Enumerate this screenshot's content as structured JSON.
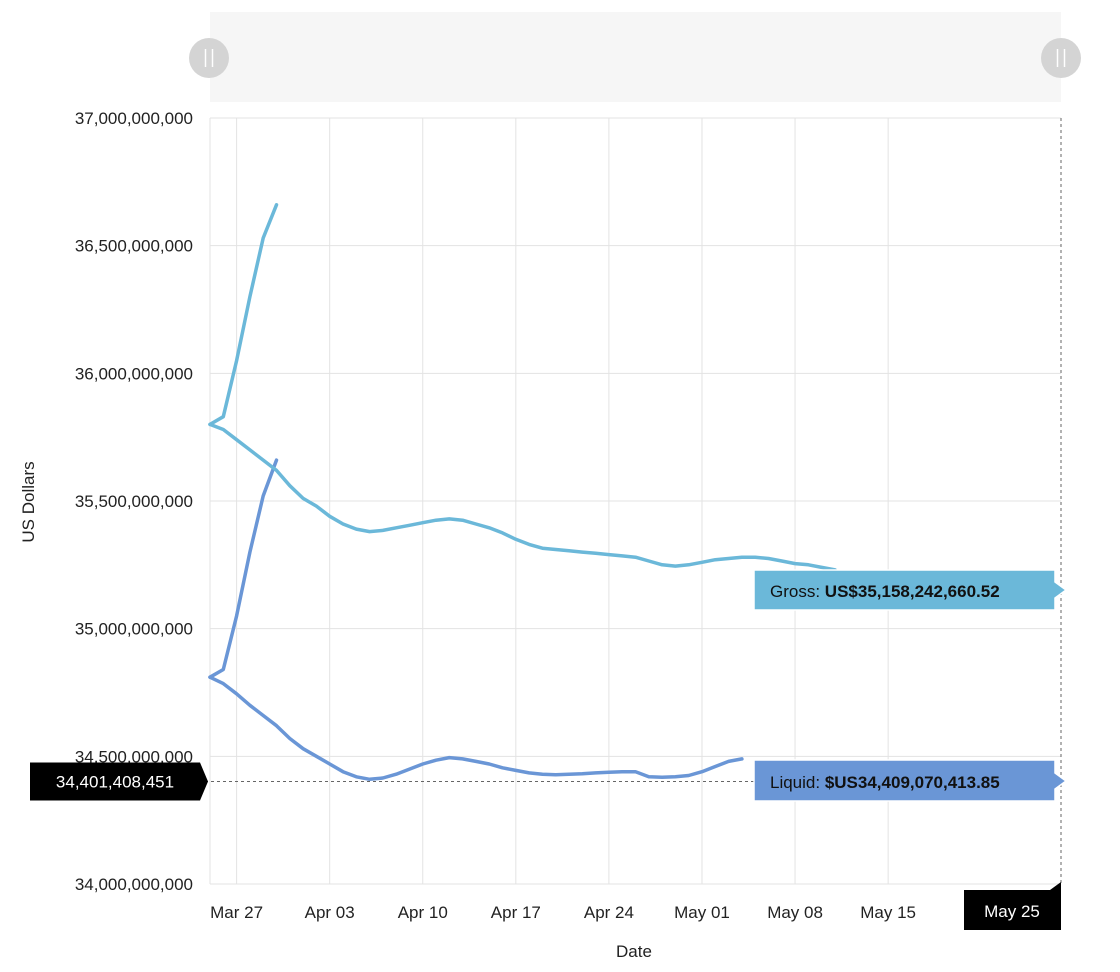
{
  "chart_data": {
    "type": "line",
    "xlabel": "Date",
    "ylabel": "US Dollars",
    "ylim": [
      34000000000,
      37000000000
    ],
    "yticks": [
      {
        "value": 34000000000,
        "label": "34,000,000,000"
      },
      {
        "value": 34500000000,
        "label": "34,500,000,000"
      },
      {
        "value": 35000000000,
        "label": "35,000,000,000"
      },
      {
        "value": 35500000000,
        "label": "35,500,000,000"
      },
      {
        "value": 36000000000,
        "label": "36,000,000,000"
      },
      {
        "value": 36500000000,
        "label": "36,500,000,000"
      },
      {
        "value": 37000000000,
        "label": "37,000,000,000"
      }
    ],
    "xlim": [
      "2020-03-25",
      "2020-05-28"
    ],
    "xticks": [
      {
        "date": "2020-03-27",
        "label": "Mar 27"
      },
      {
        "date": "2020-04-03",
        "label": "Apr 03"
      },
      {
        "date": "2020-04-10",
        "label": "Apr 10"
      },
      {
        "date": "2020-04-17",
        "label": "Apr 17"
      },
      {
        "date": "2020-04-24",
        "label": "Apr 24"
      },
      {
        "date": "2020-05-01",
        "label": "May 01"
      },
      {
        "date": "2020-05-08",
        "label": "May 08"
      },
      {
        "date": "2020-05-15",
        "label": "May 15"
      }
    ],
    "grid": true,
    "series": [
      {
        "name": "Gross",
        "color": "#6bb8d9",
        "points": [
          [
            "2020-03-25",
            35800000000
          ],
          [
            "2020-03-26",
            35780000000
          ],
          [
            "2020-03-27",
            35740000000
          ],
          [
            "2020-03-28",
            35700000000
          ],
          [
            "2020-03-29",
            35660000000
          ],
          [
            "2020-03-30",
            35620000000
          ],
          [
            "2020-03-31",
            35560000000
          ],
          [
            "2020-04-01",
            35510000000
          ],
          [
            "2020-04-02",
            35480000000
          ],
          [
            "2020-04-03",
            35440000000
          ],
          [
            "2020-04-04",
            35410000000
          ],
          [
            "2020-04-05",
            35390000000
          ],
          [
            "2020-04-06",
            35380000000
          ],
          [
            "2020-04-07",
            35385000000
          ],
          [
            "2020-04-08",
            35395000000
          ],
          [
            "2020-04-09",
            35405000000
          ],
          [
            "2020-04-10",
            35415000000
          ],
          [
            "2020-04-11",
            35425000000
          ],
          [
            "2020-04-12",
            35430000000
          ],
          [
            "2020-04-13",
            35425000000
          ],
          [
            "2020-04-14",
            35410000000
          ],
          [
            "2020-04-15",
            35395000000
          ],
          [
            "2020-04-16",
            35375000000
          ],
          [
            "2020-04-17",
            35350000000
          ],
          [
            "2020-04-18",
            35330000000
          ],
          [
            "2020-04-19",
            35315000000
          ],
          [
            "2020-04-20",
            35310000000
          ],
          [
            "2020-04-21",
            35305000000
          ],
          [
            "2020-04-22",
            35300000000
          ],
          [
            "2020-04-23",
            35295000000
          ],
          [
            "2020-04-24",
            35290000000
          ],
          [
            "2020-04-25",
            35285000000
          ],
          [
            "2020-04-26",
            35280000000
          ],
          [
            "2020-04-27",
            35265000000
          ],
          [
            "2020-04-28",
            35250000000
          ],
          [
            "2020-04-29",
            35245000000
          ],
          [
            "2020-04-30",
            35250000000
          ],
          [
            "2020-05-01",
            35260000000
          ],
          [
            "2020-05-02",
            35270000000
          ],
          [
            "2020-05-03",
            35275000000
          ],
          [
            "2020-05-04",
            35280000000
          ],
          [
            "2020-05-05",
            35280000000
          ],
          [
            "2020-05-06",
            35275000000
          ],
          [
            "2020-05-07",
            35265000000
          ],
          [
            "2020-05-08",
            35255000000
          ],
          [
            "2020-05-09",
            35250000000
          ],
          [
            "2020-05-10",
            35240000000
          ],
          [
            "2020-05-11",
            35230000000
          ]
        ]
      },
      {
        "name": "Liquid",
        "color": "#6a96d6",
        "points": [
          [
            "2020-03-25",
            34810000000
          ],
          [
            "2020-03-26",
            34785000000
          ],
          [
            "2020-03-27",
            34745000000
          ],
          [
            "2020-03-28",
            34700000000
          ],
          [
            "2020-03-29",
            34660000000
          ],
          [
            "2020-03-30",
            34620000000
          ],
          [
            "2020-03-31",
            34570000000
          ],
          [
            "2020-04-01",
            34530000000
          ],
          [
            "2020-04-02",
            34500000000
          ],
          [
            "2020-04-03",
            34470000000
          ],
          [
            "2020-04-04",
            34440000000
          ],
          [
            "2020-04-05",
            34420000000
          ],
          [
            "2020-04-06",
            34410000000
          ],
          [
            "2020-04-07",
            34415000000
          ],
          [
            "2020-04-08",
            34430000000
          ],
          [
            "2020-04-09",
            34450000000
          ],
          [
            "2020-04-10",
            34470000000
          ],
          [
            "2020-04-11",
            34485000000
          ],
          [
            "2020-04-12",
            34495000000
          ],
          [
            "2020-04-13",
            34490000000
          ],
          [
            "2020-04-14",
            34480000000
          ],
          [
            "2020-04-15",
            34470000000
          ],
          [
            "2020-04-16",
            34455000000
          ],
          [
            "2020-04-17",
            34445000000
          ],
          [
            "2020-04-18",
            34435000000
          ],
          [
            "2020-04-19",
            34430000000
          ],
          [
            "2020-04-20",
            34428000000
          ],
          [
            "2020-04-21",
            34430000000
          ],
          [
            "2020-04-22",
            34432000000
          ],
          [
            "2020-04-23",
            34435000000
          ],
          [
            "2020-04-24",
            34438000000
          ],
          [
            "2020-04-25",
            34440000000
          ],
          [
            "2020-04-26",
            34440000000
          ],
          [
            "2020-04-27",
            34420000000
          ],
          [
            "2020-04-28",
            34418000000
          ],
          [
            "2020-04-29",
            34420000000
          ],
          [
            "2020-04-30",
            34425000000
          ],
          [
            "2020-05-01",
            34440000000
          ],
          [
            "2020-05-02",
            34460000000
          ],
          [
            "2020-05-03",
            34480000000
          ],
          [
            "2020-05-04",
            34490000000
          ]
        ]
      }
    ],
    "spikes": [
      {
        "color": "#6bb8d9",
        "points": [
          [
            "2020-03-25",
            35800000000
          ],
          [
            "2020-03-26",
            35830000000
          ],
          [
            "2020-03-27",
            36050000000
          ],
          [
            "2020-03-28",
            36300000000
          ],
          [
            "2020-03-29",
            36530000000
          ],
          [
            "2020-03-30",
            36660000000
          ]
        ]
      },
      {
        "color": "#6a96d6",
        "points": [
          [
            "2020-03-25",
            34810000000
          ],
          [
            "2020-03-26",
            34840000000
          ],
          [
            "2020-03-27",
            35050000000
          ],
          [
            "2020-03-28",
            35300000000
          ],
          [
            "2020-03-29",
            35520000000
          ],
          [
            "2020-03-30",
            35660000000
          ]
        ]
      }
    ],
    "tooltips": [
      {
        "series": "Gross",
        "label": "Gross: ",
        "value": "US$35,158,242,660.52",
        "color": "#6bb8d9"
      },
      {
        "series": "Liquid",
        "label": "Liquid: ",
        "value": "$US34,409,070,413.85",
        "color": "#6a96d6"
      }
    ],
    "crosshair": {
      "y_value": 34401408451,
      "y_label": "34,401,408,451",
      "x_label": "May 25"
    }
  }
}
